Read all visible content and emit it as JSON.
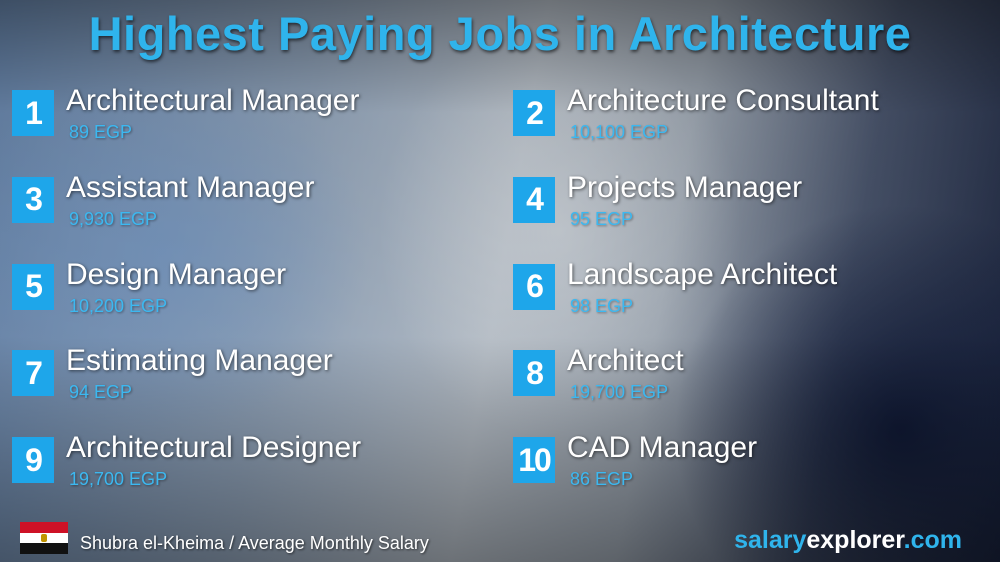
{
  "title": "Highest Paying Jobs in Architecture",
  "jobs": [
    {
      "rank": "1",
      "name": "Architectural Manager",
      "salary": "89 EGP"
    },
    {
      "rank": "2",
      "name": "Architecture Consultant",
      "salary": "10,100 EGP"
    },
    {
      "rank": "3",
      "name": "Assistant Manager",
      "salary": "9,930 EGP"
    },
    {
      "rank": "4",
      "name": "Projects Manager",
      "salary": "95 EGP"
    },
    {
      "rank": "5",
      "name": "Design Manager",
      "salary": "10,200 EGP"
    },
    {
      "rank": "6",
      "name": "Landscape Architect",
      "salary": "98 EGP"
    },
    {
      "rank": "7",
      "name": "Estimating Manager",
      "salary": "94 EGP"
    },
    {
      "rank": "8",
      "name": "Architect",
      "salary": "19,700 EGP"
    },
    {
      "rank": "9",
      "name": "Architectural Designer",
      "salary": "19,700 EGP"
    },
    {
      "rank": "10",
      "name": "CAD Manager",
      "salary": "86 EGP"
    }
  ],
  "footer": {
    "flag_icon": "egypt-flag-icon",
    "location": "Shubra el-Kheima / Average Monthly Salary",
    "brand_part1": "salary",
    "brand_part2": "explorer",
    "brand_part3": ".com"
  },
  "colors": {
    "accent": "#1ea6ea",
    "title": "#2fb4ec",
    "salary": "#3cb8f0"
  }
}
